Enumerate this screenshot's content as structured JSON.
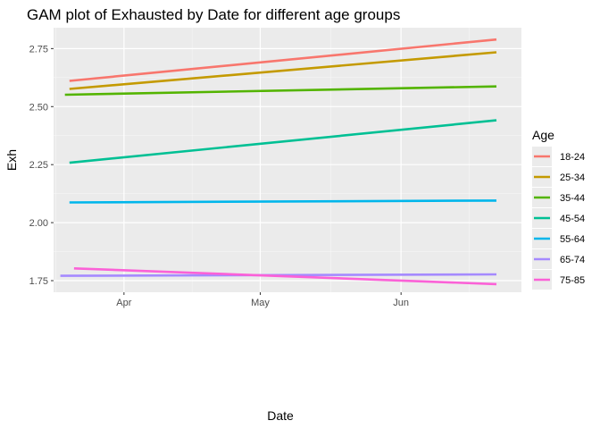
{
  "chart_data": {
    "type": "line",
    "title": "GAM plot of Exhausted by Date for different age groups",
    "xlabel": "Date",
    "ylabel": "Exh",
    "x_ticks": [
      {
        "label": "Apr",
        "day": 0
      },
      {
        "label": "May",
        "day": 30
      },
      {
        "label": "Jun",
        "day": 61
      }
    ],
    "x_minor_ticks": [
      -15,
      15,
      45.5,
      76
    ],
    "xlim": [
      -15.5,
      87.5
    ],
    "ylim": [
      1.7,
      2.84
    ],
    "y_ticks": [
      1.75,
      2.0,
      2.25,
      2.5,
      2.75
    ],
    "y_tick_labels": [
      "1.75",
      "2.00",
      "2.25",
      "2.50",
      "2.75"
    ],
    "y_minor_ticks": [
      1.875,
      2.125,
      2.375,
      2.625
    ],
    "legend_title": "Age",
    "legend_position": "right",
    "grid": true,
    "series": [
      {
        "name": "18-24",
        "color": "#F8766D",
        "x": [
          -12,
          82
        ],
        "values": [
          2.611,
          2.789
        ]
      },
      {
        "name": "25-34",
        "color": "#C49A00",
        "x": [
          -12,
          82
        ],
        "values": [
          2.576,
          2.734
        ]
      },
      {
        "name": "35-44",
        "color": "#53B400",
        "x": [
          -13,
          82
        ],
        "values": [
          2.551,
          2.587
        ]
      },
      {
        "name": "45-54",
        "color": "#00C094",
        "x": [
          -12,
          82
        ],
        "values": [
          2.258,
          2.441
        ]
      },
      {
        "name": "55-64",
        "color": "#00B6EB",
        "x": [
          -12,
          82
        ],
        "values": [
          2.087,
          2.095
        ]
      },
      {
        "name": "65-74",
        "color": "#A58AFF",
        "x": [
          -14,
          82
        ],
        "values": [
          1.771,
          1.777
        ]
      },
      {
        "name": "75-85",
        "color": "#FB61D7",
        "x": [
          -11,
          82
        ],
        "values": [
          1.803,
          1.735
        ]
      }
    ]
  }
}
